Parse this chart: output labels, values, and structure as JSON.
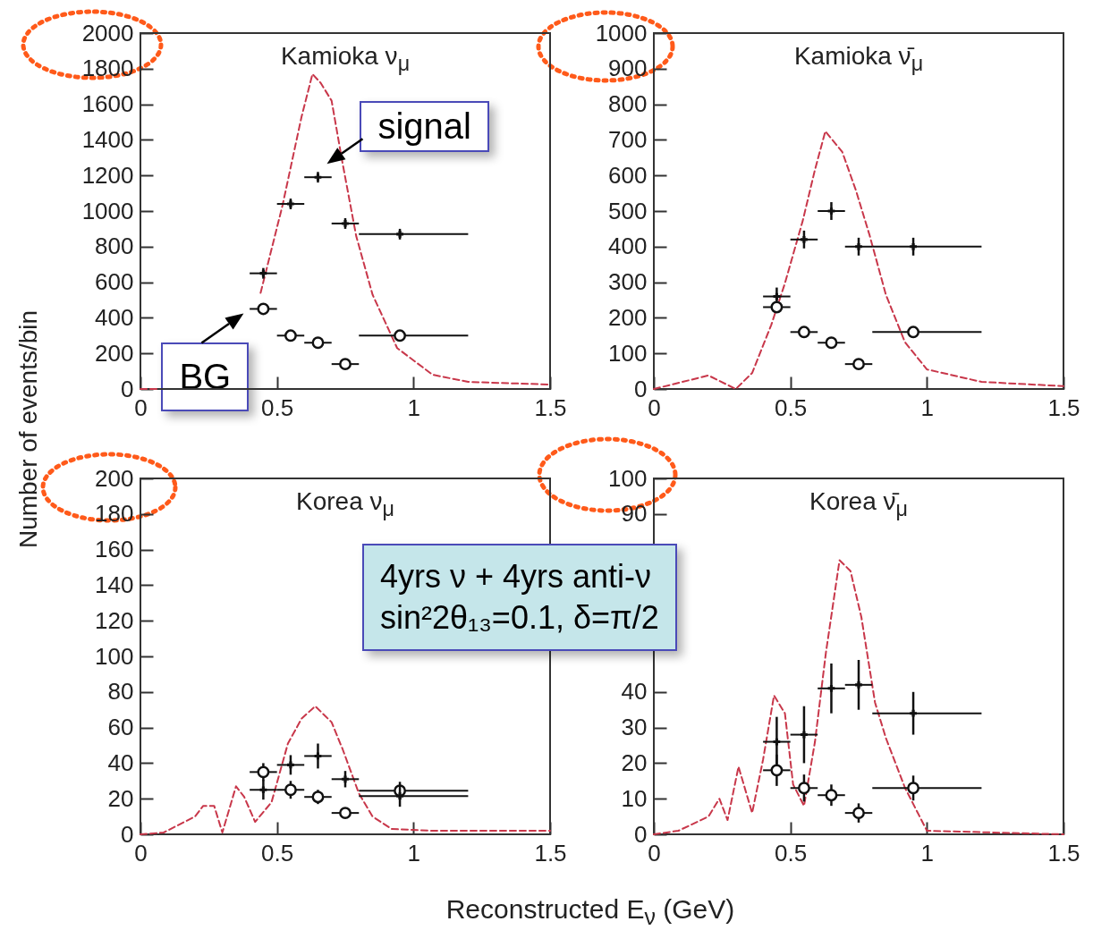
{
  "chart_data": [
    {
      "type": "scatter",
      "title": "Kamioka ν$_{μ}$",
      "ylabel": "Number of events/bin",
      "x": [
        0.45,
        0.55,
        0.65,
        0.75,
        0.95
      ],
      "xlim": [
        0,
        1.5
      ],
      "xticks": [
        0,
        0.5,
        1,
        1.5
      ],
      "ylim": [
        0,
        2000
      ],
      "yticks": [
        0,
        200,
        400,
        600,
        800,
        1000,
        1200,
        1400,
        1600,
        1800,
        2000
      ],
      "grid": false,
      "series": [
        {
          "type": "line",
          "color": "#c8374a",
          "line_style": "dashed",
          "marker": "none",
          "x": [
            0,
            0.07,
            0.25,
            0.44,
            0.52,
            0.59,
            0.63,
            0.66,
            0.7,
            0.74,
            0.79,
            0.85,
            0.94,
            1.07,
            1.2,
            1.5
          ],
          "values": [
            0,
            0,
            null,
            540,
            1030,
            1530,
            1770,
            1720,
            1620,
            1270,
            860,
            530,
            230,
            80,
            40,
            25
          ]
        },
        {
          "color": "#111111",
          "marker": "cross",
          "values": [
            650,
            1040,
            1190,
            930,
            870
          ],
          "errors": [
            30,
            30,
            30,
            30,
            30
          ],
          "xerrors": [
            [
              0.4,
              0.5
            ],
            [
              0.5,
              0.6
            ],
            [
              0.6,
              0.7
            ],
            [
              0.7,
              0.8
            ],
            [
              0.8,
              1.2
            ]
          ]
        },
        {
          "color": "#111111",
          "marker": "circle",
          "values": [
            450,
            300,
            260,
            140,
            300
          ],
          "xerrors": [
            [
              0.4,
              0.5
            ],
            [
              0.5,
              0.6
            ],
            [
              0.6,
              0.7
            ],
            [
              0.7,
              0.8
            ],
            [
              0.8,
              1.2
            ]
          ]
        }
      ],
      "annotations": [
        {
          "text": "signal",
          "x": 0.65,
          "y": 1190
        },
        {
          "text": "BG",
          "x": 0.45,
          "y": 450
        }
      ]
    },
    {
      "type": "scatter",
      "title": "Kamioka ν̄$_{μ}$",
      "x": [
        0.45,
        0.55,
        0.65,
        0.75,
        0.95
      ],
      "xlim": [
        0,
        1.5
      ],
      "xticks": [
        0,
        0.5,
        1,
        1.5
      ],
      "ylim": [
        0,
        1000
      ],
      "yticks": [
        0,
        100,
        200,
        300,
        400,
        500,
        600,
        700,
        800,
        900,
        1000
      ],
      "grid": false,
      "series": [
        {
          "type": "line",
          "color": "#c8374a",
          "line_style": "dashed",
          "marker": "none",
          "x": [
            0,
            0.2,
            0.3,
            0.36,
            0.43,
            0.48,
            0.545,
            0.59,
            0.628,
            0.69,
            0.74,
            0.79,
            0.85,
            0.92,
            1.0,
            1.2,
            1.5
          ],
          "values": [
            0,
            38,
            0,
            45,
            180,
            297,
            472,
            616,
            724,
            666,
            558,
            432,
            264,
            131,
            55,
            20,
            8
          ]
        },
        {
          "color": "#111111",
          "marker": "cross",
          "values": [
            260,
            420,
            500,
            400,
            400
          ],
          "errors": [
            25,
            25,
            25,
            25,
            25
          ],
          "xerrors": [
            [
              0.4,
              0.5
            ],
            [
              0.5,
              0.6
            ],
            [
              0.6,
              0.7
            ],
            [
              0.7,
              0.8
            ],
            [
              0.8,
              1.2
            ]
          ]
        },
        {
          "color": "#111111",
          "marker": "circle",
          "values": [
            230,
            160,
            130,
            70,
            160
          ],
          "xerrors": [
            [
              0.4,
              0.5
            ],
            [
              0.5,
              0.6
            ],
            [
              0.6,
              0.7
            ],
            [
              0.7,
              0.8
            ],
            [
              0.8,
              1.2
            ]
          ]
        }
      ]
    },
    {
      "type": "scatter",
      "title": "Korea ν$_{μ}$",
      "x": [
        0.45,
        0.55,
        0.65,
        0.75,
        0.95
      ],
      "xlim": [
        0,
        1.5
      ],
      "xticks": [
        0,
        0.5,
        1,
        1.5
      ],
      "ylim": [
        0,
        200
      ],
      "yticks": [
        0,
        20,
        40,
        60,
        80,
        100,
        120,
        140,
        160,
        180,
        200
      ],
      "grid": false,
      "series": [
        {
          "type": "line",
          "color": "#c8374a",
          "line_style": "dashed",
          "marker": "none",
          "x": [
            0,
            0.085,
            0.2,
            0.23,
            0.27,
            0.3,
            0.35,
            0.38,
            0.42,
            0.48,
            0.54,
            0.59,
            0.64,
            0.7,
            0.74,
            0.8,
            0.85,
            0.92,
            1.07,
            1.5
          ],
          "values": [
            0,
            1,
            10,
            16,
            16,
            1,
            27,
            21,
            7,
            18,
            51,
            65,
            72,
            63,
            48,
            23,
            10,
            3,
            2,
            2
          ]
        },
        {
          "color": "#111111",
          "marker": "circle",
          "values": [
            35,
            25,
            21,
            12,
            24.5
          ],
          "errors": [
            5,
            5,
            4,
            3,
            5
          ],
          "xerrors": [
            [
              0.4,
              0.5
            ],
            [
              0.5,
              0.6
            ],
            [
              0.6,
              0.7
            ],
            [
              0.7,
              0.8
            ],
            [
              0.8,
              1.2
            ]
          ]
        },
        {
          "color": "#111111",
          "marker": "cross",
          "values": [
            25,
            39,
            44,
            31,
            21.5
          ],
          "errors": [
            5.5,
            5.5,
            7,
            4.6,
            6
          ],
          "xerrors": [
            [
              0.4,
              0.5
            ],
            [
              0.5,
              0.6
            ],
            [
              0.6,
              0.7
            ],
            [
              0.7,
              0.8
            ],
            [
              0.8,
              1.2
            ]
          ]
        }
      ],
      "annotations": [
        "4yrs ν + 4yrs anti-ν",
        "sin²2θ₁₃=0.1, δ=π/2"
      ]
    },
    {
      "type": "scatter",
      "title": "Korea ν̄$_{μ}$",
      "xlabel": "Reconstructed E$_{ν}$ (GeV)",
      "x": [
        0.45,
        0.55,
        0.65,
        0.75,
        0.95
      ],
      "xlim": [
        0,
        1.5
      ],
      "xticks": [
        0,
        0.5,
        1,
        1.5
      ],
      "ylim": [
        0,
        100
      ],
      "yticks": [
        0,
        10,
        20,
        30,
        40,
        90,
        100
      ],
      "grid": false,
      "series": [
        {
          "type": "line",
          "color": "#c8374a",
          "line_style": "dashed",
          "marker": "none",
          "x": [
            0,
            0.09,
            0.2,
            0.24,
            0.27,
            0.31,
            0.36,
            0.4,
            0.44,
            0.48,
            0.51,
            0.55,
            0.59,
            0.63,
            0.68,
            0.72,
            0.76,
            0.81,
            0.85,
            0.92,
            1.0,
            1.5
          ],
          "values": [
            0,
            1,
            5,
            10,
            4,
            19,
            6,
            21,
            39,
            34,
            14,
            8,
            26,
            51,
            77,
            74,
            61,
            37,
            27,
            13,
            1,
            0
          ]
        },
        {
          "color": "#111111",
          "marker": "cross",
          "values": [
            26,
            28,
            41,
            42,
            34
          ],
          "errors": [
            7,
            8,
            7,
            7,
            6
          ],
          "xerrors": [
            [
              0.4,
              0.5
            ],
            [
              0.5,
              0.6
            ],
            [
              0.6,
              0.7
            ],
            [
              0.7,
              0.8
            ],
            [
              0.8,
              1.2
            ]
          ]
        },
        {
          "color": "#111111",
          "marker": "circle",
          "values": [
            18,
            13,
            11,
            6,
            13
          ],
          "errors": [
            4.4,
            3.8,
            3,
            2.7,
            3.5
          ],
          "xerrors": [
            [
              0.4,
              0.5
            ],
            [
              0.5,
              0.6
            ],
            [
              0.6,
              0.7
            ],
            [
              0.7,
              0.8
            ],
            [
              0.8,
              1.2
            ]
          ]
        }
      ]
    }
  ]
}
